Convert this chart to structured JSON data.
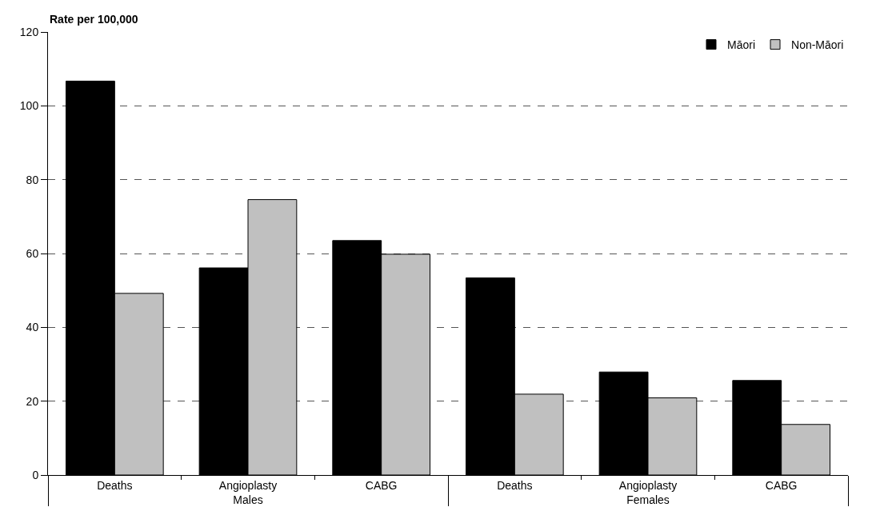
{
  "chart_data": {
    "type": "bar",
    "ylabel": "Rate per 100,000",
    "categories": [
      "Deaths",
      "Angioplasty",
      "CABG",
      "Deaths",
      "Angioplasty",
      "CABG"
    ],
    "annotations": [
      "Males",
      "Females"
    ],
    "series": [
      {
        "name": "Māori",
        "color": "#000000",
        "values": [
          106.7,
          56.1,
          63.5,
          53.4,
          27.9,
          25.6
        ]
      },
      {
        "name": "Non-Māori",
        "color": "#c0c0c0",
        "values": [
          49.2,
          74.6,
          59.8,
          21.9,
          20.9,
          13.7
        ]
      }
    ],
    "ylim": [
      0,
      120
    ],
    "yticks": [
      0,
      20,
      40,
      60,
      80,
      100,
      120
    ],
    "grid": "y",
    "legend": "top right"
  }
}
